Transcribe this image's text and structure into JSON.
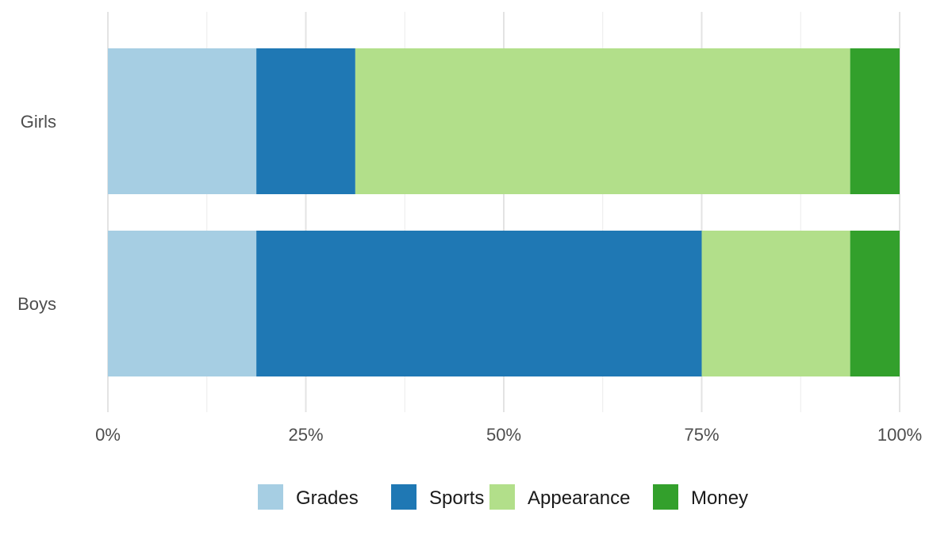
{
  "chart_data": {
    "type": "bar",
    "orientation": "horizontal",
    "stacked": "percent",
    "title": "",
    "xlabel": "",
    "ylabel": "",
    "categories": [
      "Girls",
      "Boys"
    ],
    "series": [
      {
        "name": "Grades",
        "color": "#a6cee3",
        "values": [
          18.75,
          18.75
        ]
      },
      {
        "name": "Sports",
        "color": "#1f78b4",
        "values": [
          12.5,
          56.25
        ]
      },
      {
        "name": "Appearance",
        "color": "#b2df8a",
        "values": [
          62.5,
          18.75
        ]
      },
      {
        "name": "Money",
        "color": "#33a02c",
        "values": [
          6.25,
          6.25
        ]
      }
    ],
    "xlim": [
      0,
      100
    ],
    "x_ticks": [
      0,
      25,
      50,
      75,
      100
    ],
    "x_tick_labels": [
      "0%",
      "25%",
      "50%",
      "75%",
      "100%"
    ],
    "grid": true,
    "legend_position": "bottom"
  }
}
